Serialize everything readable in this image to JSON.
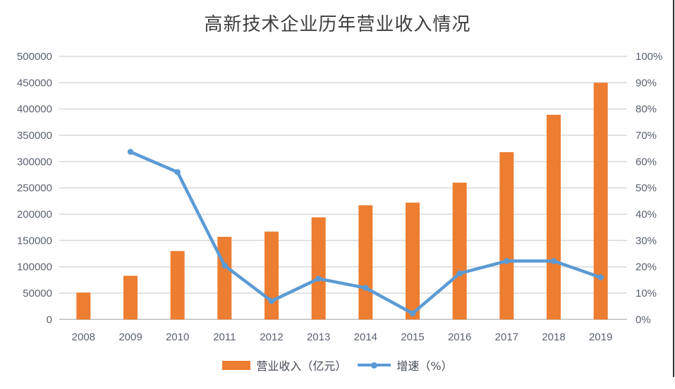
{
  "title": "高新技术企业历年营业收入情况",
  "colors": {
    "bar": "#ED7D31",
    "line": "#5B9BD5",
    "grid": "#D9D9D9",
    "axis_line": "#BFBFBF",
    "tick_text": "#5A6170",
    "title_text": "#3D3D3D",
    "border": "#2E2E2E"
  },
  "legend": {
    "items": [
      {
        "label": "营业收入（亿元）",
        "swatch": "bar"
      },
      {
        "label": "增速（%）",
        "swatch": "line"
      }
    ]
  },
  "chart_data": {
    "type": "combo",
    "title": "高新技术企业历年营业收入情况",
    "categories": [
      "2008",
      "2009",
      "2010",
      "2011",
      "2012",
      "2013",
      "2014",
      "2015",
      "2016",
      "2017",
      "2018",
      "2019"
    ],
    "series": [
      {
        "name": "营业收入（亿元）",
        "type": "bar",
        "axis": "left",
        "values": [
          51000,
          83000,
          130000,
          157000,
          167000,
          194000,
          217000,
          222000,
          260000,
          318000,
          389000,
          450000
        ]
      },
      {
        "name": "增速（%）",
        "type": "line",
        "axis": "right",
        "values": [
          null,
          63.7,
          56,
          20.5,
          7,
          15.5,
          12,
          2.3,
          17.5,
          22.2,
          22.2,
          16
        ]
      }
    ],
    "left_axis": {
      "min": 0,
      "max": 500000,
      "step": 50000,
      "tick_labels": [
        "0",
        "50000",
        "100000",
        "150000",
        "200000",
        "250000",
        "300000",
        "350000",
        "400000",
        "450000",
        "500000"
      ]
    },
    "right_axis": {
      "min": 0,
      "max": 100,
      "step": 10,
      "tick_labels": [
        "0%",
        "10%",
        "20%",
        "30%",
        "40%",
        "50%",
        "60%",
        "70%",
        "80%",
        "90%",
        "100%"
      ]
    },
    "grid": true,
    "legend_position": "bottom"
  }
}
